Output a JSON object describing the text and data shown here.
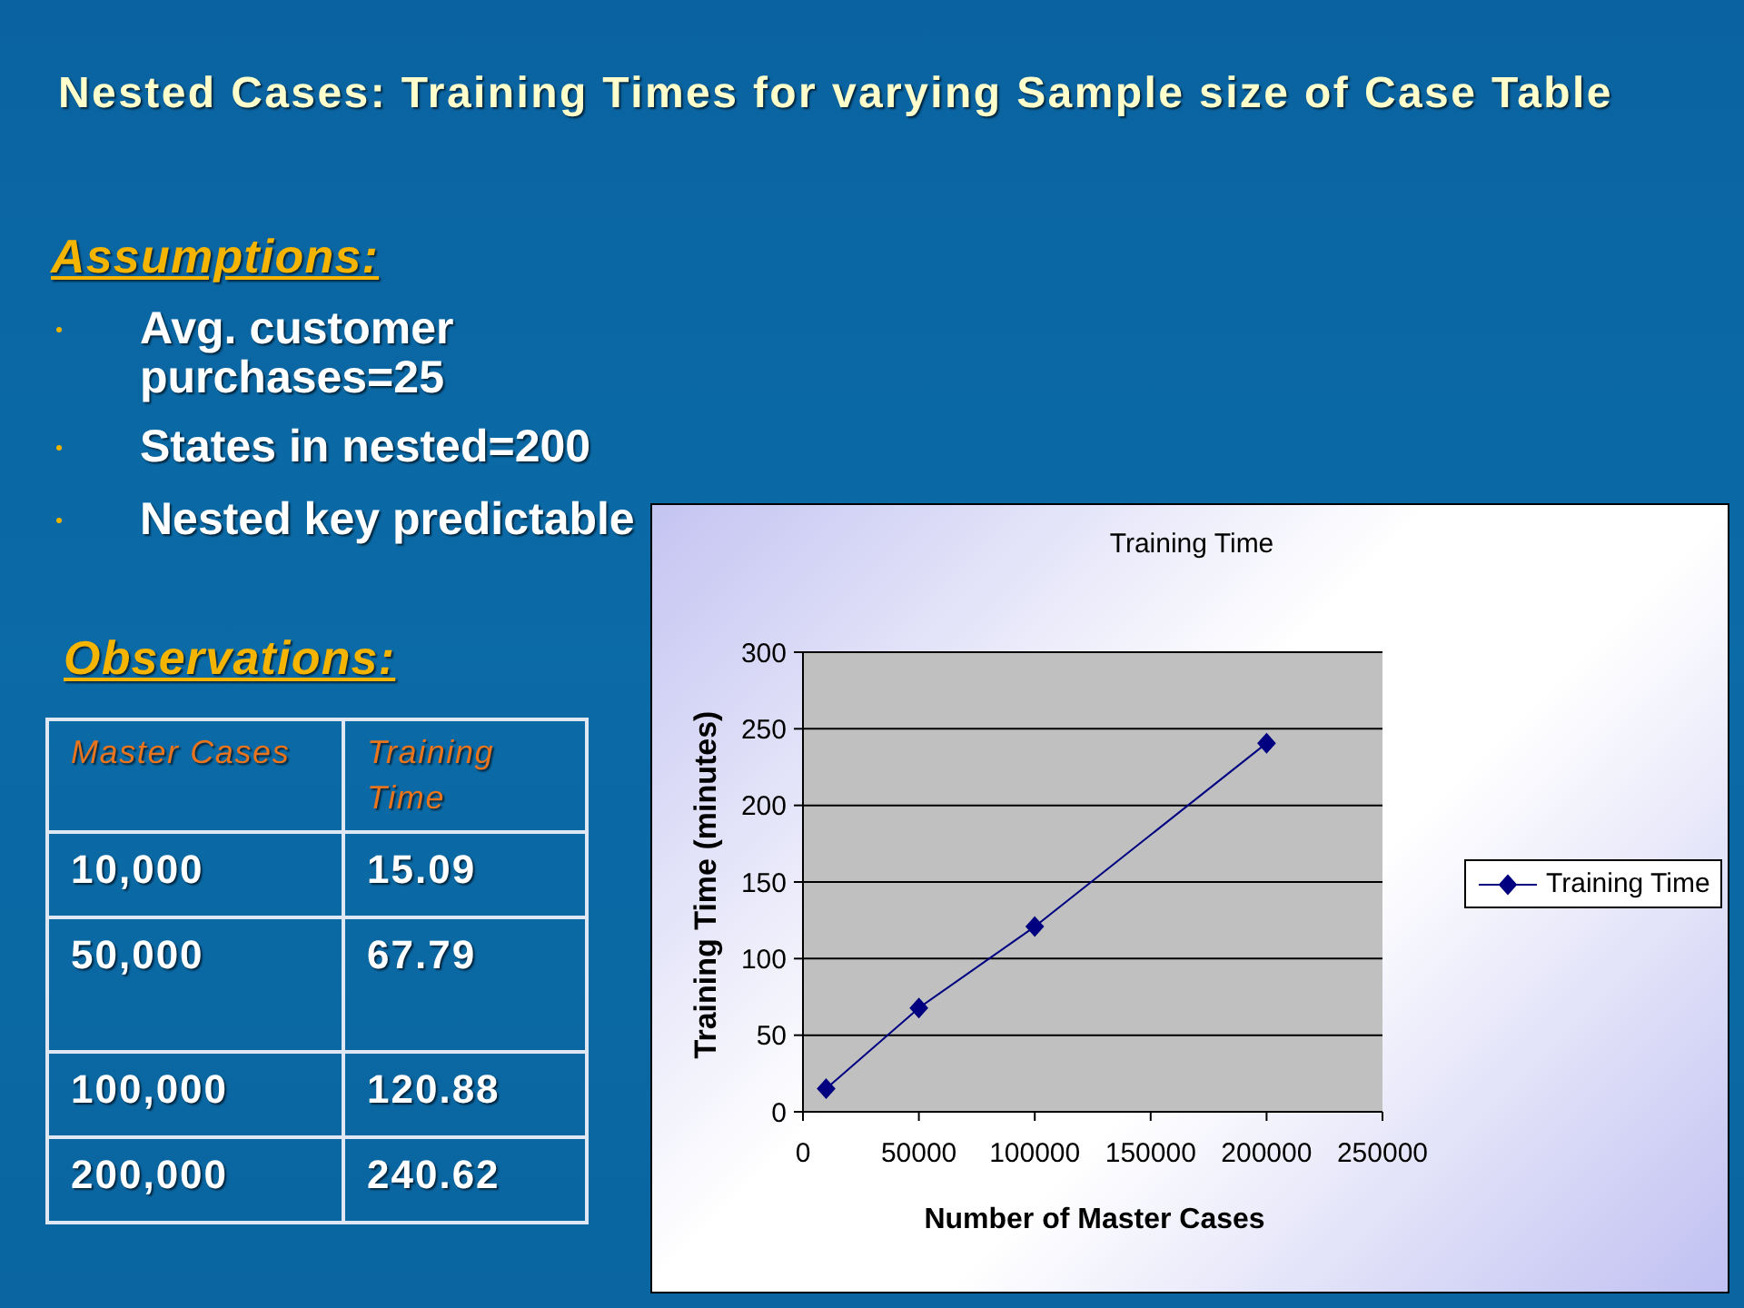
{
  "chart_data": [
    {
      "type": "other",
      "title": "Nested Cases: Training Times for varying Sample size of Case Table",
      "annotations": [
        "Assumptions:",
        "Avg. customer purchases=25",
        "States in nested=200",
        "Nested key predictable",
        "Observations:"
      ],
      "xlabel": "Master Cases",
      "ylabel": "Training Time",
      "categories": [
        "10,000",
        "50,000",
        "100,000",
        "200,000"
      ],
      "values": [
        15.09,
        67.79,
        120.88,
        240.62
      ],
      "data_labels": true
    },
    {
      "type": "line",
      "title": "Training Time",
      "xlabel": "Number of Master Cases",
      "ylabel": "Training Time (minutes)",
      "x": [
        10000,
        50000,
        100000,
        200000
      ],
      "series": [
        {
          "name": "Training Time",
          "color": "#000080",
          "values": [
            15.09,
            67.79,
            120.88,
            240.62
          ]
        }
      ],
      "xlim": [
        0,
        250000
      ],
      "xticks": [
        0,
        50000,
        100000,
        150000,
        200000,
        250000
      ],
      "ylim": [
        0,
        300
      ],
      "yticks": [
        0,
        50,
        100,
        150,
        200,
        250,
        300
      ],
      "grid": "y",
      "legend": "right",
      "marker": "diamond",
      "line_style": "solid"
    }
  ]
}
